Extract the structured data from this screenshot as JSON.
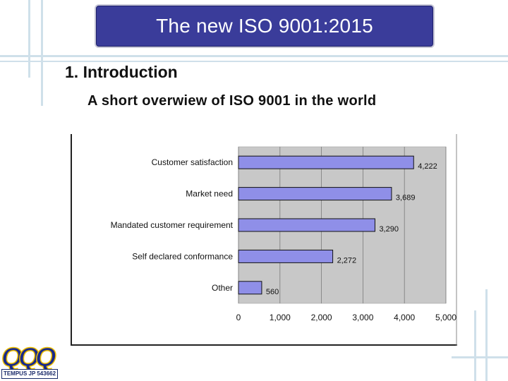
{
  "slide": {
    "title": "The new ISO 9001:2015",
    "heading": "1. Introduction",
    "subheading": "A short overwiew of ISO 9001 in the world"
  },
  "logo": {
    "text": "TEMPUS JP 543662"
  },
  "colors": {
    "title_bg": "#3a3c9a",
    "bar_fill": "#8f8fe8",
    "plot_bg": "#c8c8c8",
    "deco_lines": "#cfe0ea"
  },
  "chart_data": {
    "type": "bar",
    "orientation": "horizontal",
    "categories": [
      "Customer satisfaction",
      "Market need",
      "Mandated customer requirement",
      "Self declared conformance",
      "Other"
    ],
    "values": [
      4222,
      3689,
      3290,
      2272,
      560
    ],
    "data_labels": [
      "4,222",
      "3,689",
      "3,290",
      "2,272",
      "560"
    ],
    "xlim": [
      0,
      5000
    ],
    "xticks": [
      "0",
      "1,000",
      "2,000",
      "3,000",
      "4,000",
      "5,000"
    ],
    "grid": true,
    "title": "",
    "xlabel": "",
    "ylabel": ""
  }
}
